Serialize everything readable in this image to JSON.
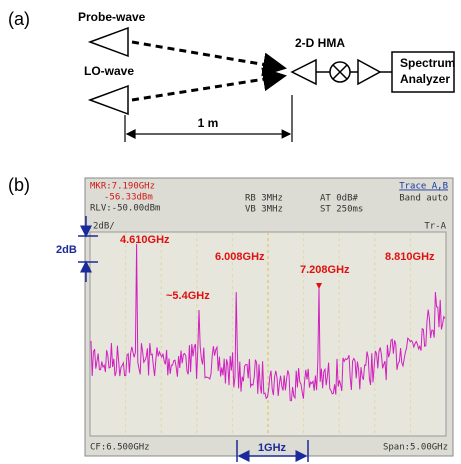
{
  "panel_a": {
    "label": "(a)",
    "probe": "Probe-wave",
    "lo": "LO-wave",
    "hma": "2-D HMA",
    "analyzer_1": "Spectrum",
    "analyzer_2": "Analyzer",
    "distance": "1 m"
  },
  "panel_b": {
    "label": "(b)",
    "screen": {
      "mkr": "MKR:7.190GHz",
      "mkr_level": "-56.33dBm",
      "rlv": "RLV:-50.00dBm",
      "rb": "RB 3MHz",
      "vb": "VB 3MHz",
      "at": "AT 0dB#",
      "st": "ST 250ms",
      "trace": "Trace A,B",
      "band": "Band auto",
      "scale": "2dB/",
      "tr": "Tr-A",
      "cf": "CF:6.500GHz",
      "span": "Span:5.00GHz"
    },
    "peaks": [
      "4.610GHz",
      "~5.4GHz",
      "6.008GHz",
      "7.208GHz",
      "8.810GHz"
    ],
    "scale_bar": "2dB",
    "freq_bar": "1GHz"
  }
}
